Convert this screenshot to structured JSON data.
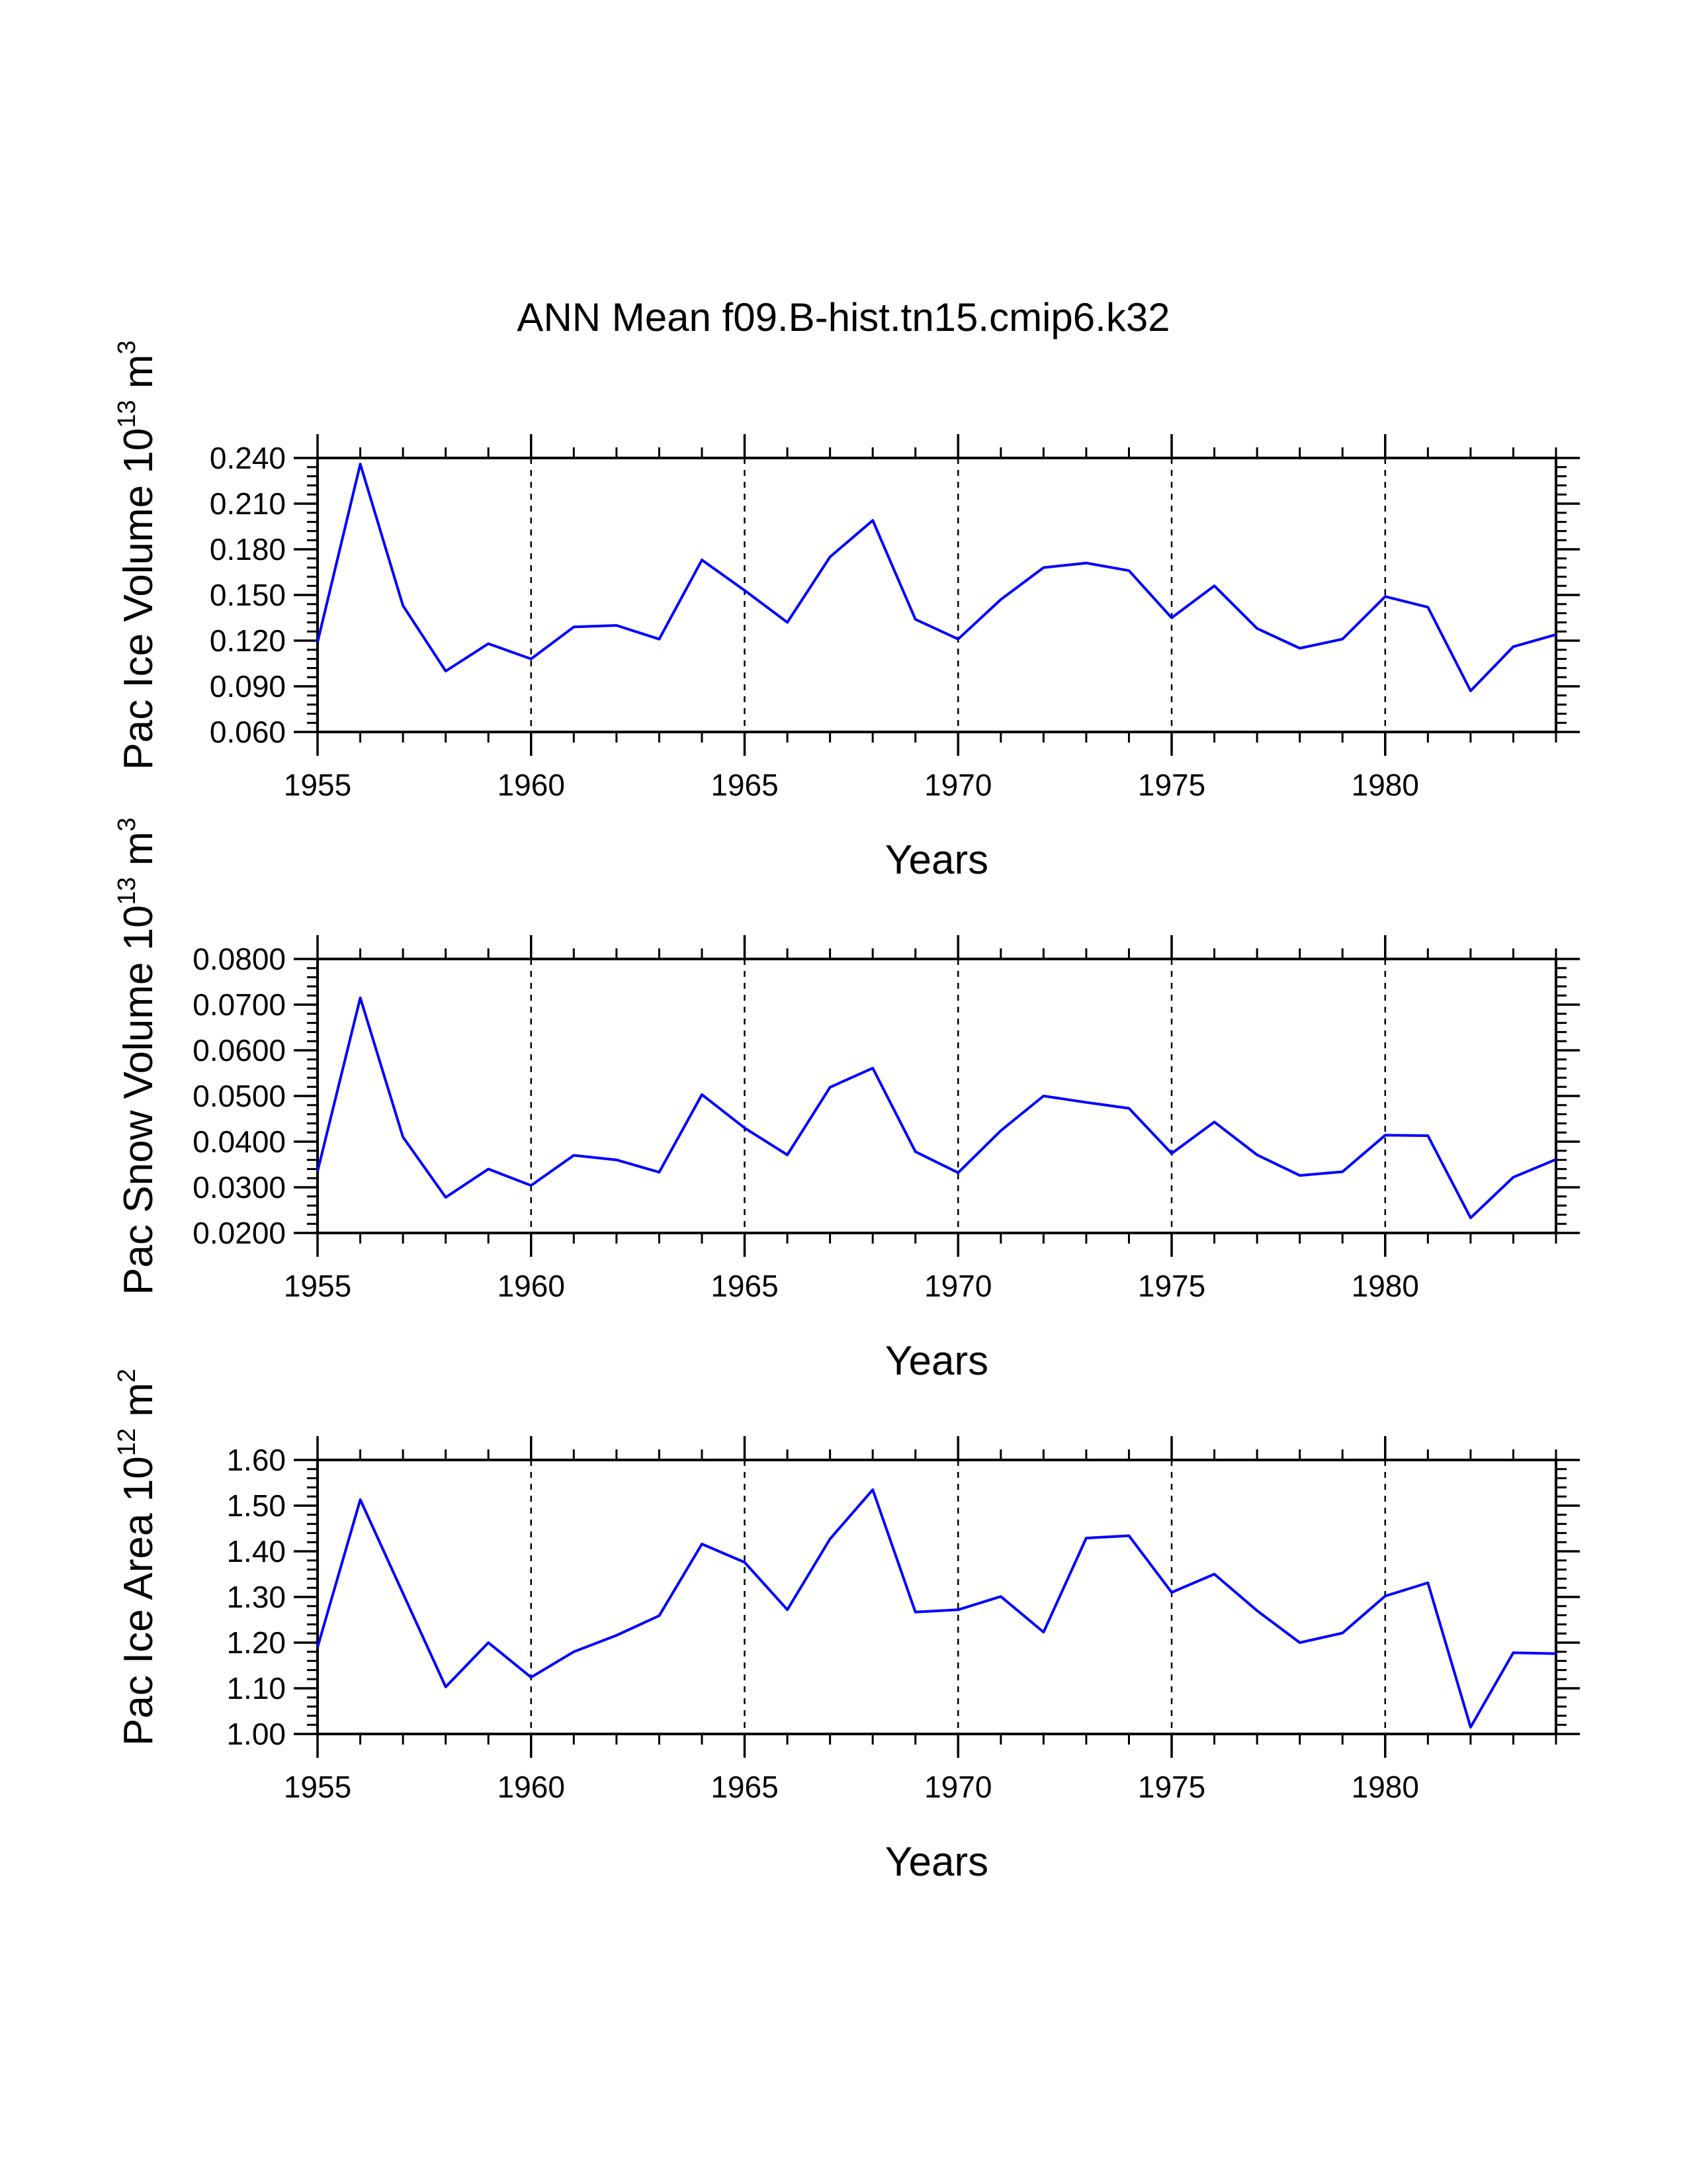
{
  "figure_title": "ANN Mean f09.B-hist.tn15.cmip6.k32",
  "chart_data": [
    {
      "type": "line",
      "ylabel": {
        "text": "Pac Ice Volume 10",
        "exp": "13",
        "unit": " m",
        "unit_exp": "3"
      },
      "xlabel": "Years",
      "xlim": [
        1955,
        1984
      ],
      "ylim": [
        0.06,
        0.24
      ],
      "xticks": [
        1955,
        1960,
        1965,
        1970,
        1975,
        1980
      ],
      "xtick_labels": [
        "1955",
        "1960",
        "1965",
        "1970",
        "1975",
        "1980"
      ],
      "yticks": [
        0.06,
        0.09,
        0.12,
        0.15,
        0.18,
        0.21,
        0.24
      ],
      "ytick_labels": [
        "0.060",
        "0.090",
        "0.120",
        "0.150",
        "0.180",
        "0.210",
        "0.240"
      ],
      "y_minor_step": 0.006,
      "grid": "x-major dashed",
      "line_color": "#0000ff",
      "series": [
        {
          "name": "Pac Ice Volume",
          "x": [
            1955,
            1956,
            1957,
            1958,
            1959,
            1960,
            1961,
            1962,
            1963,
            1964,
            1965,
            1966,
            1967,
            1968,
            1969,
            1970,
            1971,
            1972,
            1973,
            1974,
            1975,
            1976,
            1977,
            1978,
            1979,
            1980,
            1981,
            1982,
            1983,
            1984
          ],
          "values": [
            0.119,
            0.236,
            0.143,
            0.1,
            0.118,
            0.108,
            0.129,
            0.13,
            0.121,
            0.173,
            0.153,
            0.132,
            0.175,
            0.199,
            0.134,
            0.121,
            0.147,
            0.168,
            0.171,
            0.166,
            0.135,
            0.156,
            0.128,
            0.115,
            0.121,
            0.149,
            0.142,
            0.087,
            0.116,
            0.124
          ]
        }
      ]
    },
    {
      "type": "line",
      "ylabel": {
        "text": "Pac Snow Volume 10",
        "exp": "13",
        "unit": " m",
        "unit_exp": "3"
      },
      "xlabel": "Years",
      "xlim": [
        1955,
        1984
      ],
      "ylim": [
        0.02,
        0.08
      ],
      "xticks": [
        1955,
        1960,
        1965,
        1970,
        1975,
        1980
      ],
      "xtick_labels": [
        "1955",
        "1960",
        "1965",
        "1970",
        "1975",
        "1980"
      ],
      "yticks": [
        0.02,
        0.03,
        0.04,
        0.05,
        0.06,
        0.07,
        0.08
      ],
      "ytick_labels": [
        "0.0200",
        "0.0300",
        "0.0400",
        "0.0500",
        "0.0600",
        "0.0700",
        "0.0800"
      ],
      "y_minor_step": 0.002,
      "grid": "x-major dashed",
      "line_color": "#0000ff",
      "series": [
        {
          "name": "Pac Snow Volume",
          "x": [
            1955,
            1956,
            1957,
            1958,
            1959,
            1960,
            1961,
            1962,
            1963,
            1964,
            1965,
            1966,
            1967,
            1968,
            1969,
            1970,
            1971,
            1972,
            1973,
            1974,
            1975,
            1976,
            1977,
            1978,
            1979,
            1980,
            1981,
            1982,
            1983,
            1984
          ],
          "values": [
            0.0335,
            0.0715,
            0.041,
            0.0278,
            0.034,
            0.0304,
            0.037,
            0.036,
            0.0333,
            0.0503,
            0.043,
            0.0371,
            0.0519,
            0.0561,
            0.0378,
            0.0332,
            0.0424,
            0.05,
            0.0486,
            0.0473,
            0.0374,
            0.0443,
            0.0371,
            0.0326,
            0.0334,
            0.0414,
            0.0413,
            0.0233,
            0.0322,
            0.0361
          ]
        }
      ]
    },
    {
      "type": "line",
      "ylabel": {
        "text": "Pac Ice Area 10",
        "exp": "12",
        "unit": " m",
        "unit_exp": "2"
      },
      "xlabel": "Years",
      "xlim": [
        1955,
        1984
      ],
      "ylim": [
        1.0,
        1.6
      ],
      "xticks": [
        1955,
        1960,
        1965,
        1970,
        1975,
        1980
      ],
      "xtick_labels": [
        "1955",
        "1960",
        "1965",
        "1970",
        "1975",
        "1980"
      ],
      "yticks": [
        1.0,
        1.1,
        1.2,
        1.3,
        1.4,
        1.5,
        1.6
      ],
      "ytick_labels": [
        "1.00",
        "1.10",
        "1.20",
        "1.30",
        "1.40",
        "1.50",
        "1.60"
      ],
      "y_minor_step": 0.02,
      "grid": "x-major dashed",
      "line_color": "#0000ff",
      "series": [
        {
          "name": "Pac Ice Area",
          "x": [
            1955,
            1956,
            1957,
            1958,
            1959,
            1960,
            1961,
            1962,
            1963,
            1964,
            1965,
            1966,
            1967,
            1968,
            1969,
            1970,
            1971,
            1972,
            1973,
            1974,
            1975,
            1976,
            1977,
            1978,
            1979,
            1980,
            1981,
            1982,
            1983,
            1984
          ],
          "values": [
            1.19,
            1.513,
            1.308,
            1.103,
            1.2,
            1.124,
            1.18,
            1.216,
            1.259,
            1.416,
            1.376,
            1.272,
            1.427,
            1.535,
            1.267,
            1.272,
            1.301,
            1.223,
            1.429,
            1.434,
            1.31,
            1.35,
            1.27,
            1.2,
            1.221,
            1.302,
            1.331,
            1.015,
            1.178,
            1.176
          ]
        }
      ]
    }
  ]
}
